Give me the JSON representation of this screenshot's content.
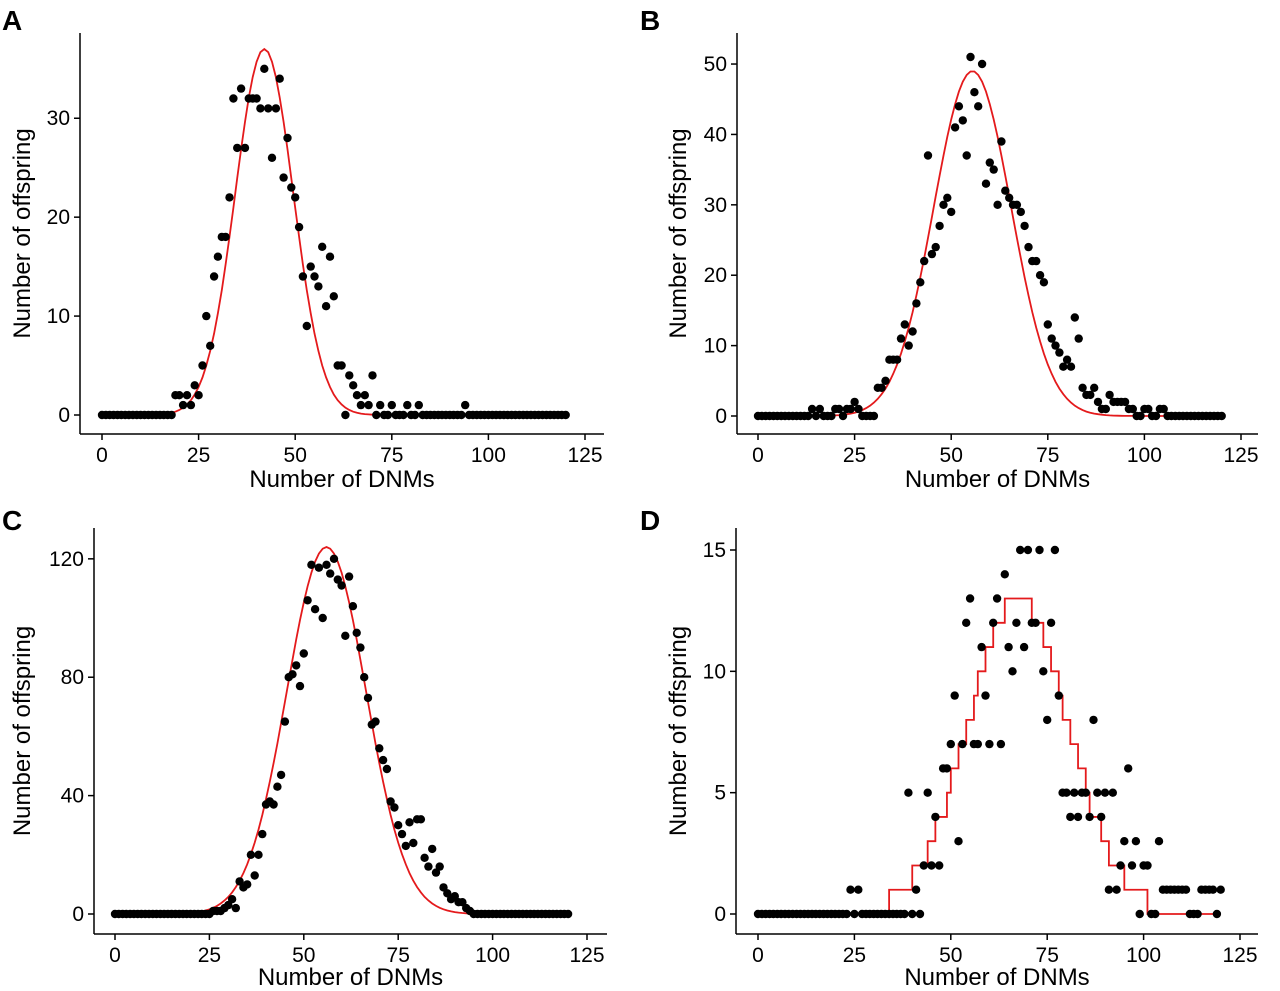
{
  "figure": {
    "background": "#ffffff",
    "point_color": "#000000",
    "curve_color": "#e41a1c"
  },
  "chart_data": [
    {
      "panel": "A",
      "type": "scatter",
      "xlabel": "Number of DNMs",
      "ylabel": "Number of offspring",
      "xlim": [
        0,
        125
      ],
      "ylim": [
        0,
        37
      ],
      "xticks": [
        0,
        25,
        50,
        75,
        100,
        125
      ],
      "yticks": [
        0,
        10,
        20,
        30
      ],
      "grid": false,
      "legend": "none",
      "curve": {
        "mean": 42,
        "sd": 7.5,
        "peak": 37
      },
      "points": [
        [
          19,
          2
        ],
        [
          20,
          2
        ],
        [
          21,
          1
        ],
        [
          22,
          2
        ],
        [
          23,
          1
        ],
        [
          24,
          3
        ],
        [
          25,
          2
        ],
        [
          26,
          5
        ],
        [
          27,
          10
        ],
        [
          28,
          7
        ],
        [
          29,
          14
        ],
        [
          30,
          16
        ],
        [
          31,
          18
        ],
        [
          32,
          18
        ],
        [
          33,
          22
        ],
        [
          34,
          32
        ],
        [
          35,
          27
        ],
        [
          36,
          33
        ],
        [
          37,
          27
        ],
        [
          38,
          32
        ],
        [
          39,
          32
        ],
        [
          40,
          32
        ],
        [
          41,
          31
        ],
        [
          42,
          35
        ],
        [
          43,
          31
        ],
        [
          44,
          26
        ],
        [
          45,
          31
        ],
        [
          46,
          34
        ],
        [
          47,
          24
        ],
        [
          48,
          28
        ],
        [
          49,
          23
        ],
        [
          50,
          22
        ],
        [
          51,
          19
        ],
        [
          52,
          14
        ],
        [
          53,
          9
        ],
        [
          54,
          15
        ],
        [
          55,
          14
        ],
        [
          56,
          13
        ],
        [
          57,
          17
        ],
        [
          58,
          11
        ],
        [
          59,
          16
        ],
        [
          60,
          12
        ],
        [
          61,
          5
        ],
        [
          62,
          5
        ],
        [
          63,
          0
        ],
        [
          64,
          4
        ],
        [
          65,
          3
        ],
        [
          66,
          2
        ],
        [
          67,
          1
        ],
        [
          68,
          2
        ],
        [
          69,
          1
        ],
        [
          70,
          4
        ],
        [
          72,
          1
        ],
        [
          73,
          0
        ],
        [
          74,
          0
        ],
        [
          75,
          1
        ],
        [
          77,
          0
        ],
        [
          78,
          0
        ],
        [
          79,
          1
        ],
        [
          80,
          0
        ],
        [
          81,
          0
        ],
        [
          82,
          1
        ],
        [
          94,
          1
        ]
      ]
    },
    {
      "panel": "B",
      "type": "scatter",
      "xlabel": "Number of DNMs",
      "ylabel": "Number of offspring",
      "xlim": [
        0,
        125
      ],
      "ylim": [
        0,
        51
      ],
      "xticks": [
        0,
        25,
        50,
        75,
        100,
        125
      ],
      "yticks": [
        0,
        10,
        20,
        30,
        40,
        50
      ],
      "grid": false,
      "legend": "none",
      "curve": {
        "mean": 55.5,
        "sd": 10,
        "peak": 49
      },
      "points": [
        [
          14,
          1
        ],
        [
          16,
          1
        ],
        [
          20,
          1
        ],
        [
          21,
          1
        ],
        [
          23,
          1
        ],
        [
          24,
          1
        ],
        [
          25,
          2
        ],
        [
          26,
          1
        ],
        [
          30,
          0
        ],
        [
          31,
          4
        ],
        [
          32,
          4
        ],
        [
          33,
          5
        ],
        [
          34,
          8
        ],
        [
          35,
          8
        ],
        [
          36,
          8
        ],
        [
          37,
          11
        ],
        [
          38,
          13
        ],
        [
          39,
          10
        ],
        [
          40,
          12
        ],
        [
          41,
          16
        ],
        [
          42,
          19
        ],
        [
          43,
          22
        ],
        [
          44,
          37
        ],
        [
          45,
          23
        ],
        [
          46,
          24
        ],
        [
          47,
          27
        ],
        [
          48,
          30
        ],
        [
          49,
          31
        ],
        [
          50,
          29
        ],
        [
          51,
          41
        ],
        [
          52,
          44
        ],
        [
          53,
          42
        ],
        [
          54,
          37
        ],
        [
          55,
          51
        ],
        [
          56,
          46
        ],
        [
          57,
          44
        ],
        [
          58,
          50
        ],
        [
          59,
          33
        ],
        [
          60,
          36
        ],
        [
          61,
          35
        ],
        [
          62,
          30
        ],
        [
          63,
          39
        ],
        [
          64,
          32
        ],
        [
          65,
          31
        ],
        [
          66,
          30
        ],
        [
          67,
          30
        ],
        [
          68,
          29
        ],
        [
          69,
          27
        ],
        [
          70,
          24
        ],
        [
          71,
          22
        ],
        [
          72,
          22
        ],
        [
          73,
          20
        ],
        [
          74,
          19
        ],
        [
          75,
          13
        ],
        [
          76,
          11
        ],
        [
          77,
          10
        ],
        [
          78,
          9
        ],
        [
          79,
          7
        ],
        [
          80,
          8
        ],
        [
          81,
          7
        ],
        [
          82,
          14
        ],
        [
          83,
          11
        ],
        [
          84,
          4
        ],
        [
          85,
          3
        ],
        [
          86,
          3
        ],
        [
          87,
          4
        ],
        [
          88,
          2
        ],
        [
          89,
          1
        ],
        [
          90,
          1
        ],
        [
          91,
          3
        ],
        [
          92,
          2
        ],
        [
          93,
          2
        ],
        [
          94,
          2
        ],
        [
          95,
          2
        ],
        [
          96,
          1
        ],
        [
          97,
          1
        ],
        [
          98,
          0
        ],
        [
          100,
          1
        ],
        [
          101,
          1
        ],
        [
          103,
          0
        ],
        [
          104,
          1
        ],
        [
          105,
          1
        ]
      ]
    },
    {
      "panel": "C",
      "type": "scatter",
      "xlabel": "Number of DNMs",
      "ylabel": "Number of offspring",
      "xlim": [
        0,
        125
      ],
      "ylim": [
        0,
        124
      ],
      "xticks": [
        0,
        25,
        50,
        75,
        100,
        125
      ],
      "yticks": [
        0,
        40,
        80,
        120
      ],
      "grid": false,
      "legend": "none",
      "curve": {
        "mean": 56,
        "sd": 10.5,
        "peak": 124
      },
      "points": [
        [
          26,
          1
        ],
        [
          27,
          1
        ],
        [
          28,
          1
        ],
        [
          29,
          2
        ],
        [
          30,
          3
        ],
        [
          31,
          5
        ],
        [
          32,
          2
        ],
        [
          33,
          11
        ],
        [
          34,
          9
        ],
        [
          35,
          10
        ],
        [
          36,
          20
        ],
        [
          37,
          13
        ],
        [
          38,
          20
        ],
        [
          39,
          27
        ],
        [
          40,
          37
        ],
        [
          41,
          38
        ],
        [
          42,
          37
        ],
        [
          43,
          43
        ],
        [
          44,
          47
        ],
        [
          45,
          65
        ],
        [
          46,
          80
        ],
        [
          47,
          81
        ],
        [
          48,
          84
        ],
        [
          49,
          77
        ],
        [
          50,
          88
        ],
        [
          51,
          106
        ],
        [
          52,
          118
        ],
        [
          53,
          103
        ],
        [
          54,
          117
        ],
        [
          55,
          100
        ],
        [
          56,
          118
        ],
        [
          57,
          115
        ],
        [
          58,
          120
        ],
        [
          59,
          113
        ],
        [
          60,
          111
        ],
        [
          61,
          94
        ],
        [
          62,
          114
        ],
        [
          63,
          104
        ],
        [
          64,
          95
        ],
        [
          65,
          90
        ],
        [
          66,
          80
        ],
        [
          67,
          73
        ],
        [
          68,
          64
        ],
        [
          69,
          65
        ],
        [
          70,
          56
        ],
        [
          71,
          52
        ],
        [
          72,
          49
        ],
        [
          73,
          38
        ],
        [
          74,
          36
        ],
        [
          75,
          30
        ],
        [
          76,
          27
        ],
        [
          77,
          23
        ],
        [
          78,
          31
        ],
        [
          79,
          24
        ],
        [
          80,
          32
        ],
        [
          81,
          32
        ],
        [
          82,
          19
        ],
        [
          83,
          16
        ],
        [
          84,
          22
        ],
        [
          85,
          14
        ],
        [
          86,
          16
        ],
        [
          87,
          9
        ],
        [
          88,
          7
        ],
        [
          89,
          5
        ],
        [
          90,
          6
        ],
        [
          91,
          4
        ],
        [
          92,
          4
        ],
        [
          93,
          2
        ],
        [
          94,
          1
        ]
      ]
    },
    {
      "panel": "D",
      "type": "scatter",
      "xlabel": "Number of DNMs",
      "ylabel": "Number of offspring",
      "xlim": [
        0,
        125
      ],
      "ylim": [
        0,
        15
      ],
      "xticks": [
        0,
        25,
        50,
        75,
        100,
        125
      ],
      "yticks": [
        0,
        5,
        10,
        15
      ],
      "grid": false,
      "legend": "none",
      "curve": {
        "mean": 67,
        "sd": 13,
        "peak": 13,
        "stepped": true
      },
      "points": [
        [
          24,
          1
        ],
        [
          26,
          1
        ],
        [
          39,
          5
        ],
        [
          41,
          1
        ],
        [
          42,
          0
        ],
        [
          43,
          2
        ],
        [
          44,
          5
        ],
        [
          45,
          2
        ],
        [
          46,
          4
        ],
        [
          47,
          2
        ],
        [
          48,
          6
        ],
        [
          49,
          6
        ],
        [
          50,
          7
        ],
        [
          51,
          9
        ],
        [
          52,
          3
        ],
        [
          53,
          7
        ],
        [
          54,
          12
        ],
        [
          55,
          13
        ],
        [
          56,
          7
        ],
        [
          57,
          7
        ],
        [
          58,
          11
        ],
        [
          59,
          9
        ],
        [
          60,
          7
        ],
        [
          61,
          12
        ],
        [
          62,
          13
        ],
        [
          63,
          7
        ],
        [
          64,
          14
        ],
        [
          65,
          11
        ],
        [
          66,
          10
        ],
        [
          67,
          12
        ],
        [
          68,
          15
        ],
        [
          69,
          11
        ],
        [
          70,
          15
        ],
        [
          71,
          12
        ],
        [
          72,
          12
        ],
        [
          73,
          15
        ],
        [
          74,
          10
        ],
        [
          75,
          8
        ],
        [
          76,
          12
        ],
        [
          77,
          15
        ],
        [
          78,
          9
        ],
        [
          79,
          5
        ],
        [
          80,
          5
        ],
        [
          81,
          4
        ],
        [
          82,
          5
        ],
        [
          83,
          4
        ],
        [
          84,
          5
        ],
        [
          85,
          5
        ],
        [
          86,
          4
        ],
        [
          87,
          8
        ],
        [
          88,
          5
        ],
        [
          89,
          4
        ],
        [
          90,
          5
        ],
        [
          91,
          1
        ],
        [
          92,
          5
        ],
        [
          93,
          1
        ],
        [
          94,
          2
        ],
        [
          95,
          3
        ],
        [
          96,
          6
        ],
        [
          97,
          2
        ],
        [
          98,
          3
        ],
        [
          99,
          0
        ],
        [
          100,
          2
        ],
        [
          101,
          2
        ],
        [
          102,
          0
        ],
        [
          103,
          0
        ],
        [
          104,
          3
        ],
        [
          105,
          1
        ],
        [
          106,
          1
        ],
        [
          107,
          1
        ],
        [
          108,
          1
        ],
        [
          109,
          1
        ],
        [
          110,
          1
        ],
        [
          111,
          1
        ],
        [
          112,
          0
        ],
        [
          115,
          1
        ],
        [
          116,
          1
        ],
        [
          117,
          1
        ],
        [
          118,
          1
        ],
        [
          120,
          1
        ]
      ]
    }
  ]
}
